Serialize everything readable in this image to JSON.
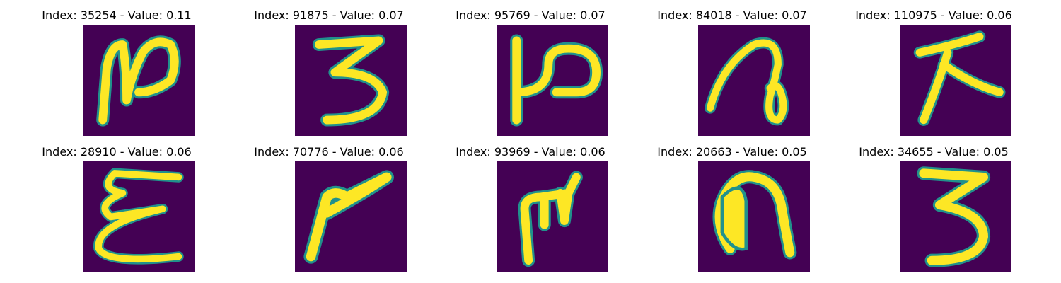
{
  "colors": {
    "background": "#440154",
    "stroke_outer": "#21918c",
    "stroke_inner": "#fde725",
    "title_text": "#000000"
  },
  "chart_data": {
    "type": "image-grid",
    "colormap": "viridis",
    "rows": 2,
    "cols": 5,
    "items": [
      {
        "title": "Index: 35254 - Value: 0.11",
        "index": 35254,
        "value": 0.11
      },
      {
        "title": "Index: 91875 - Value: 0.07",
        "index": 91875,
        "value": 0.07
      },
      {
        "title": "Index: 95769 - Value: 0.07",
        "index": 95769,
        "value": 0.07
      },
      {
        "title": "Index: 84018 - Value: 0.07",
        "index": 84018,
        "value": 0.07
      },
      {
        "title": "Index: 110975 - Value: 0.06",
        "index": 110975,
        "value": 0.06
      },
      {
        "title": "Index: 28910 - Value: 0.06",
        "index": 28910,
        "value": 0.06
      },
      {
        "title": "Index: 70776 - Value: 0.06",
        "index": 70776,
        "value": 0.06
      },
      {
        "title": "Index: 93969 - Value: 0.06",
        "index": 93969,
        "value": 0.06
      },
      {
        "title": "Index: 20663 - Value: 0.05",
        "index": 20663,
        "value": 0.05
      },
      {
        "title": "Index: 34655 - Value: 0.05",
        "index": 34655,
        "value": 0.05
      }
    ]
  }
}
